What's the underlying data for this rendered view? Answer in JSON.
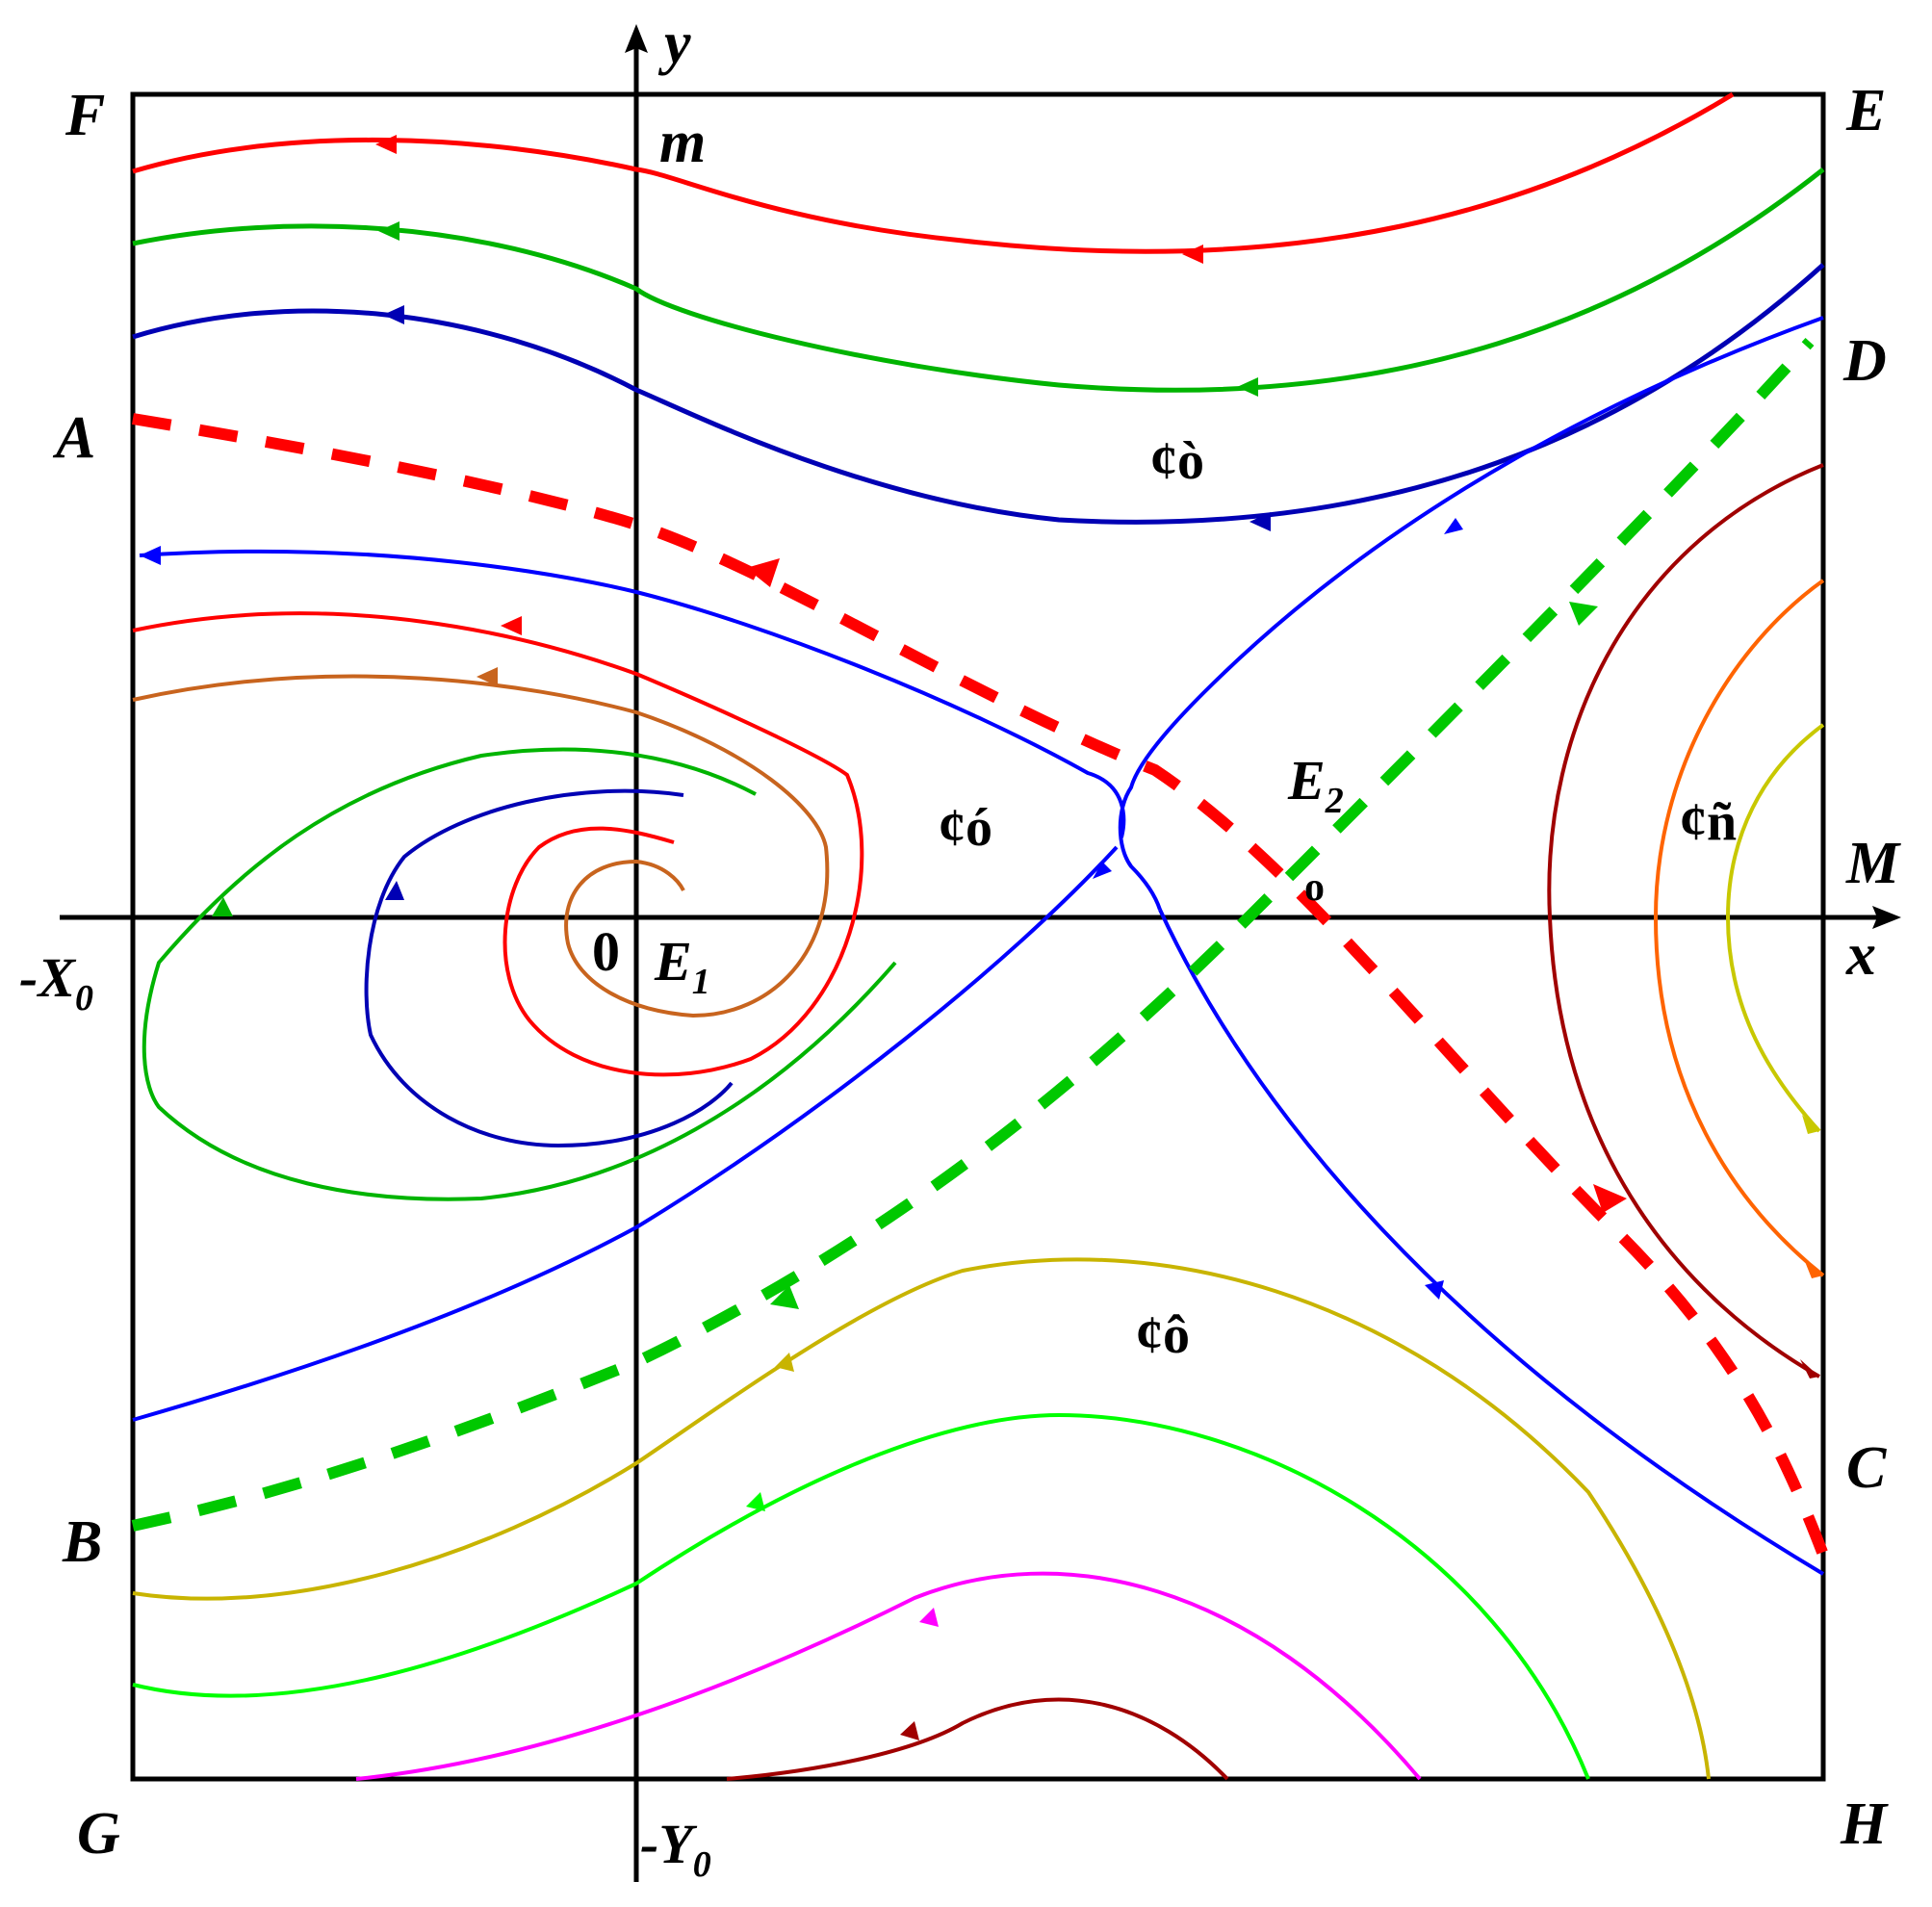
{
  "labels": {
    "F": "F",
    "E": "E",
    "D": "D",
    "A": "A",
    "M": "M",
    "C": "C",
    "B": "B",
    "G": "G",
    "H": "H",
    "y": "y",
    "x": "x",
    "m": "m",
    "zero": "0",
    "neg_x0": "-X",
    "neg_x0_sub": "0",
    "neg_y0": "-Y",
    "neg_y0_sub": "0",
    "e1": "E",
    "e1_sub": "1",
    "e2": "E",
    "e2_sub": "2",
    "region_top": "¢ò",
    "region_left": "¢ó",
    "region_right": "¢ñ",
    "region_bottom": "¢ô",
    "e2_marker": "o"
  },
  "colors": {
    "red": "#ff0000",
    "green": "#00b400",
    "navy": "#0000b4",
    "blue": "#0000ff",
    "brown": "#c8641e",
    "olive": "#c8b400",
    "lime": "#00ff00",
    "magenta": "#ff00ff",
    "darkred": "#a00000",
    "orange": "#ff6400",
    "yellowgreen": "#c8c800",
    "sep_red": "#ff0000",
    "sep_green": "#00c800"
  }
}
